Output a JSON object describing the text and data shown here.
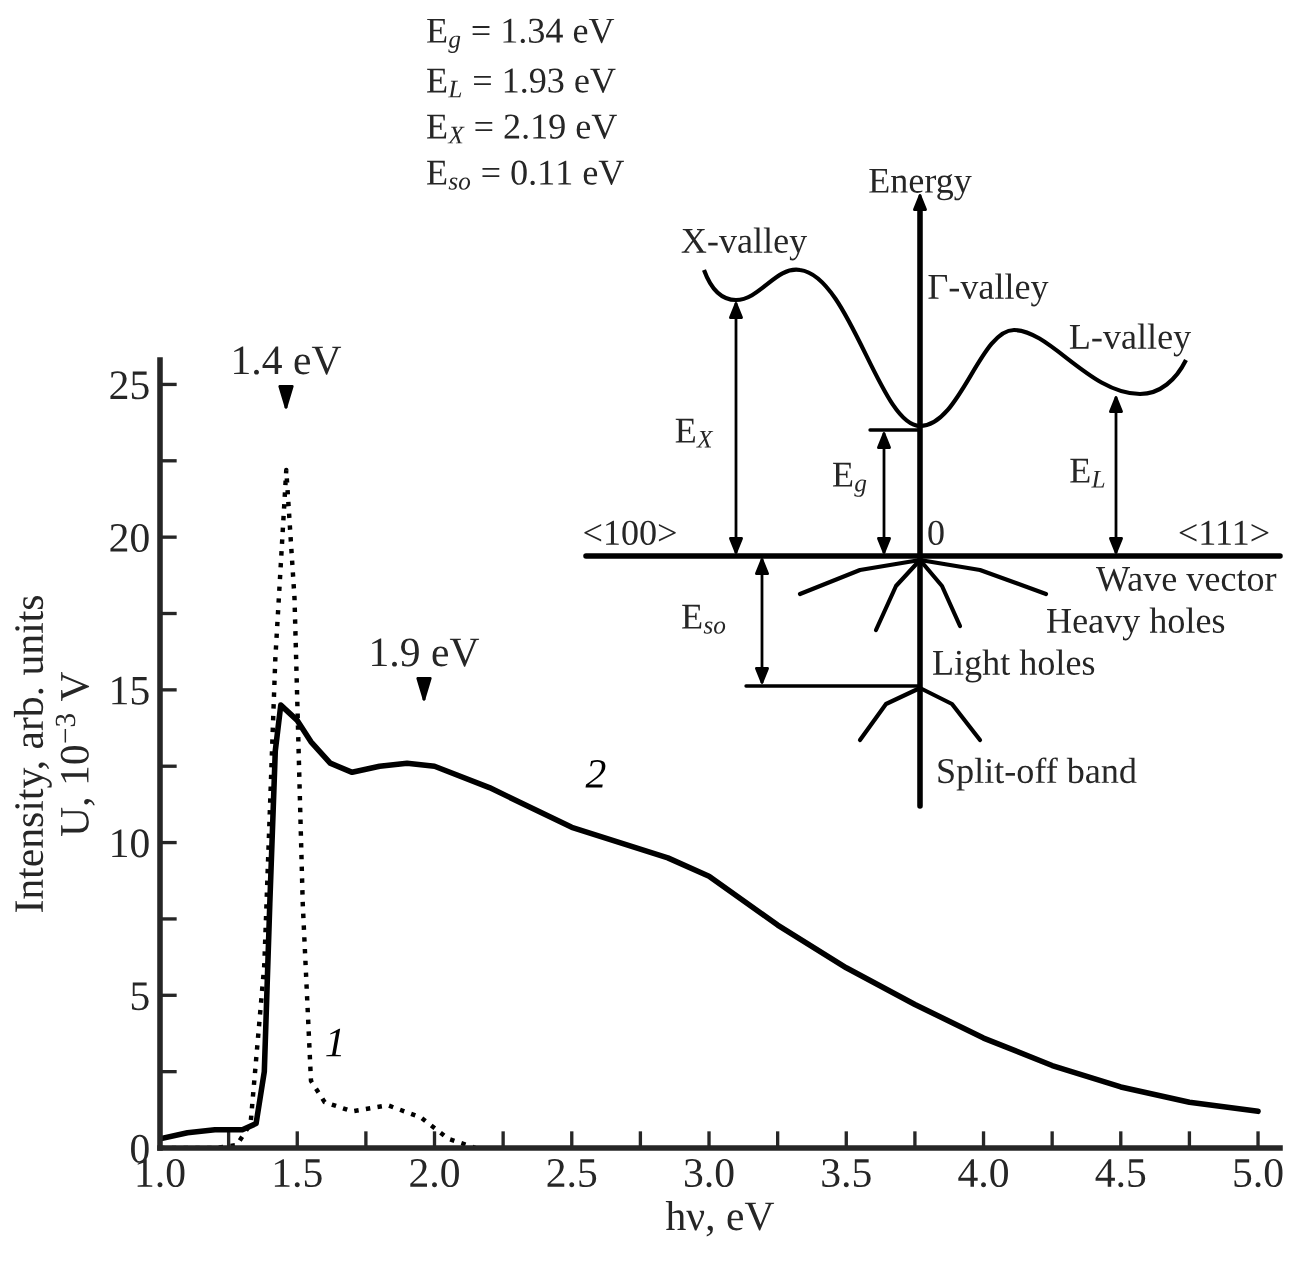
{
  "chart_data": {
    "type": "line",
    "xlabel": "hν, eV",
    "ylabel": "Intensity, arb. units\nU, 10$^{−3}$ V",
    "xlim": [
      1.0,
      5.08
    ],
    "ylim": [
      0,
      25.8
    ],
    "xticks": [
      {
        "value": 1.0,
        "label": "1.0"
      },
      {
        "value": 1.25,
        "label": null
      },
      {
        "value": 1.5,
        "label": "1.5"
      },
      {
        "value": 1.75,
        "label": null
      },
      {
        "value": 2.0,
        "label": "2.0"
      },
      {
        "value": 2.25,
        "label": null
      },
      {
        "value": 2.5,
        "label": "2.5"
      },
      {
        "value": 2.75,
        "label": null
      },
      {
        "value": 3.0,
        "label": "3.0"
      },
      {
        "value": 3.25,
        "label": null
      },
      {
        "value": 3.5,
        "label": "3.5"
      },
      {
        "value": 3.75,
        "label": null
      },
      {
        "value": 4.0,
        "label": "4.0"
      },
      {
        "value": 4.25,
        "label": null
      },
      {
        "value": 4.5,
        "label": "4.5"
      },
      {
        "value": 4.75,
        "label": null
      },
      {
        "value": 5.0,
        "label": "5.0"
      }
    ],
    "yticks": [
      0,
      {
        "value": 2.5,
        "label": null
      },
      5,
      {
        "value": 7.5,
        "label": null
      },
      10,
      {
        "value": 12.5,
        "label": null
      },
      15,
      {
        "value": 17.5,
        "label": null
      },
      20,
      {
        "value": 22.5,
        "label": null
      },
      25
    ],
    "grid": false,
    "legend": false,
    "marker": "none",
    "series": [
      {
        "name": "1",
        "color": "#000000",
        "line_style": "dotted",
        "x": [
          1.0,
          1.2,
          1.28,
          1.33,
          1.38,
          1.42,
          1.46,
          1.49,
          1.52,
          1.55,
          1.6,
          1.7,
          1.83,
          1.95,
          2.05,
          2.15
        ],
        "values": [
          0,
          0,
          0.1,
          0.8,
          6,
          16,
          22.2,
          18,
          8,
          2.2,
          1.5,
          1.2,
          1.4,
          1.0,
          0.3,
          0
        ]
      },
      {
        "name": "2",
        "color": "#000000",
        "line_style": "solid",
        "x": [
          1.0,
          1.1,
          1.2,
          1.3,
          1.35,
          1.38,
          1.4,
          1.42,
          1.44,
          1.5,
          1.55,
          1.62,
          1.7,
          1.8,
          1.9,
          2.0,
          2.2,
          2.5,
          2.85,
          3.0,
          3.25,
          3.5,
          3.75,
          4.0,
          4.25,
          4.5,
          4.75,
          5.0
        ],
        "values": [
          0.3,
          0.5,
          0.6,
          0.6,
          0.8,
          2.5,
          8,
          13,
          14.5,
          14,
          13.3,
          12.6,
          12.3,
          12.5,
          12.6,
          12.5,
          11.8,
          10.5,
          9.5,
          8.9,
          7.3,
          5.9,
          4.7,
          3.6,
          2.7,
          2.0,
          1.5,
          1.2
        ]
      }
    ],
    "annotations": [
      "1.4 eV",
      "1.9 eV",
      "E$_{g}$ = 1.34 eV",
      "E$_{L}$ = 1.93 eV",
      "E$_{X}$ = 2.19 eV",
      "E$_{so}$ = 0.11 eV",
      "Energy",
      "X-valley",
      "Γ-valley",
      "L-valley",
      "E$_{X}$",
      "E$_{g}$",
      "E$_{L}$",
      "<100>",
      "0",
      "<111>",
      "Wave vector",
      "Heavy holes",
      "E$_{so}$",
      "Light holes",
      "Split-off band"
    ]
  }
}
